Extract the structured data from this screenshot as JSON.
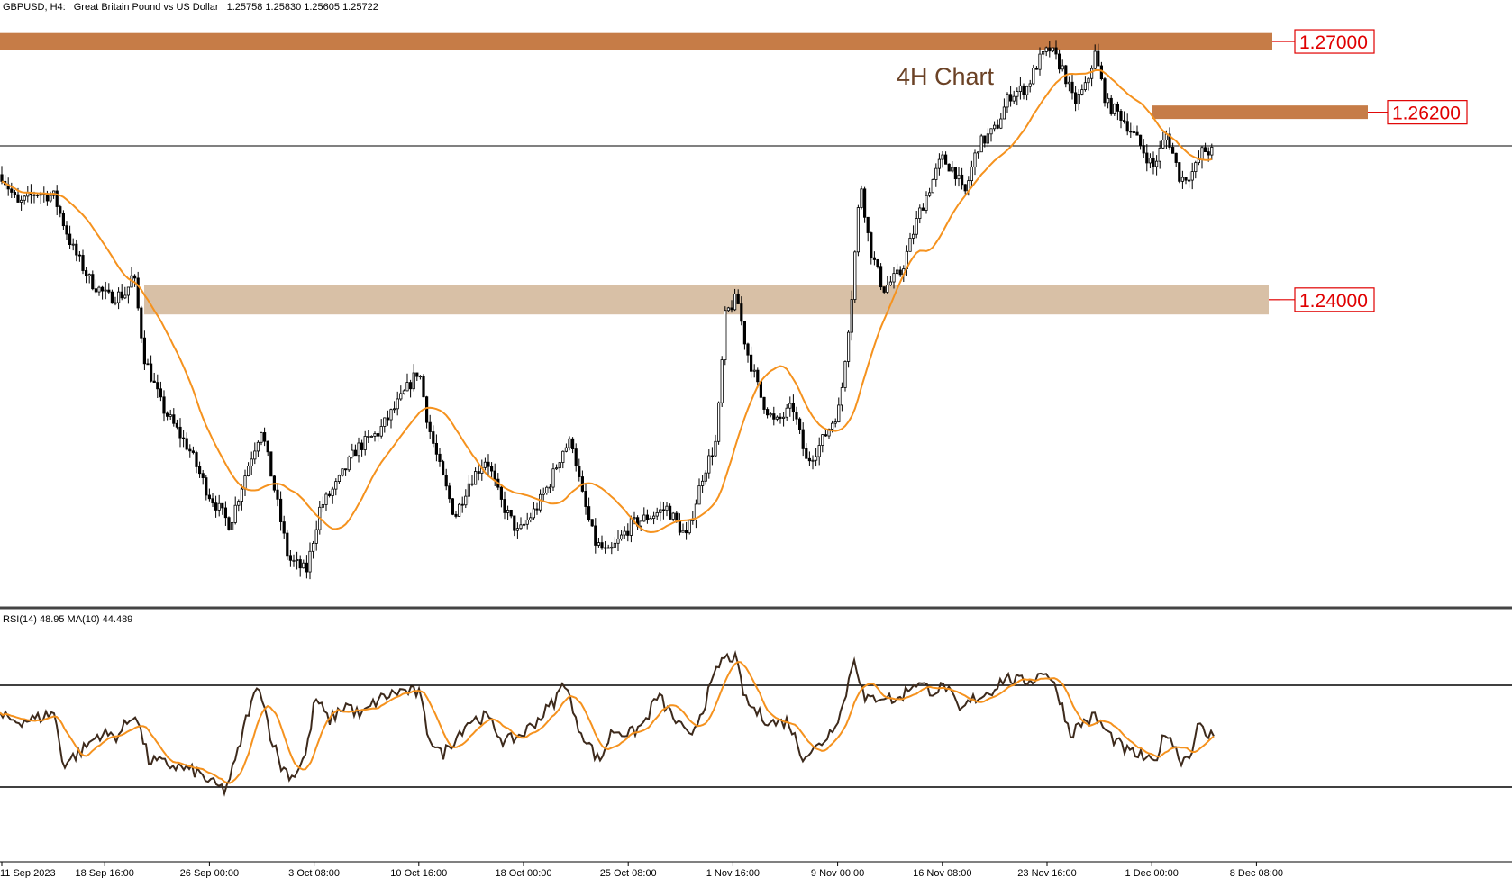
{
  "header": {
    "symbol": "GBPUSD, H4:",
    "description": "Great Britain Pound vs US Dollar",
    "ohlc": "1.25758 1.25830 1.25605 1.25722"
  },
  "indicator_label": "RSI(14) 48.95 MA(10) 44.489",
  "annotation": "4H Chart",
  "colors": {
    "candle": "#000000",
    "ma_line": "#f5921e",
    "rsi_line": "#3d2a1c",
    "rsi_ma_line": "#f5921e",
    "zone_dark": "#c67c47",
    "zone_light": "#d8c0a6",
    "level_label": "#e00000",
    "annotation": "#6b4226"
  },
  "chart_data": [
    {
      "type": "candlestick",
      "title": "",
      "x_ticks": [
        "11 Sep 2023",
        "18 Sep 16:00",
        "26 Sep 00:00",
        "3 Oct 08:00",
        "10 Oct 16:00",
        "18 Oct 00:00",
        "25 Oct 08:00",
        "1 Nov 16:00",
        "9 Nov 00:00",
        "16 Nov 08:00",
        "23 Nov 16:00",
        "1 Dec 00:00",
        "8 Dec 08:00"
      ],
      "ylim": [
        1.2035,
        1.275
      ],
      "current_price": 1.25722,
      "price_path": [
        [
          0,
          1.255
        ],
        [
          20,
          1.251
        ],
        [
          40,
          1.2525
        ],
        [
          60,
          1.252
        ],
        [
          80,
          1.246
        ],
        [
          100,
          1.242
        ],
        [
          120,
          1.24
        ],
        [
          140,
          1.2405
        ],
        [
          148,
          1.243
        ],
        [
          160,
          1.233
        ],
        [
          180,
          1.227
        ],
        [
          210,
          1.222
        ],
        [
          230,
          1.217
        ],
        [
          255,
          1.213
        ],
        [
          275,
          1.22
        ],
        [
          290,
          1.2245
        ],
        [
          305,
          1.217
        ],
        [
          320,
          1.209
        ],
        [
          340,
          1.2075
        ],
        [
          355,
          1.215
        ],
        [
          375,
          1.218
        ],
        [
          395,
          1.222
        ],
        [
          420,
          1.224
        ],
        [
          445,
          1.228
        ],
        [
          465,
          1.2315
        ],
        [
          475,
          1.225
        ],
        [
          490,
          1.219
        ],
        [
          505,
          1.214
        ],
        [
          520,
          1.218
        ],
        [
          540,
          1.221
        ],
        [
          555,
          1.216
        ],
        [
          575,
          1.212
        ],
        [
          595,
          1.215
        ],
        [
          610,
          1.218
        ],
        [
          625,
          1.222
        ],
        [
          635,
          1.223
        ],
        [
          645,
          1.217
        ],
        [
          660,
          1.211
        ],
        [
          675,
          1.2095
        ],
        [
          700,
          1.213
        ],
        [
          720,
          1.214
        ],
        [
          740,
          1.215
        ],
        [
          762,
          1.2115
        ],
        [
          780,
          1.219
        ],
        [
          795,
          1.223
        ],
        [
          805,
          1.238
        ],
        [
          818,
          1.24
        ],
        [
          828,
          1.234
        ],
        [
          845,
          1.228
        ],
        [
          860,
          1.225
        ],
        [
          880,
          1.227
        ],
        [
          895,
          1.2205
        ],
        [
          910,
          1.2225
        ],
        [
          932,
          1.227
        ],
        [
          945,
          1.24
        ],
        [
          955,
          1.254
        ],
        [
          965,
          1.246
        ],
        [
          980,
          1.241
        ],
        [
          1000,
          1.243
        ],
        [
          1020,
          1.25
        ],
        [
          1045,
          1.2565
        ],
        [
          1060,
          1.255
        ],
        [
          1070,
          1.252
        ],
        [
          1085,
          1.258
        ],
        [
          1105,
          1.26
        ],
        [
          1120,
          1.264
        ],
        [
          1140,
          1.265
        ],
        [
          1152,
          1.268
        ],
        [
          1165,
          1.2695
        ],
        [
          1180,
          1.267
        ],
        [
          1192,
          1.263
        ],
        [
          1205,
          1.265
        ],
        [
          1215,
          1.269
        ],
        [
          1228,
          1.263
        ],
        [
          1245,
          1.2615
        ],
        [
          1260,
          1.259
        ],
        [
          1280,
          1.2555
        ],
        [
          1295,
          1.2595
        ],
        [
          1310,
          1.254
        ],
        [
          1325,
          1.255
        ],
        [
          1335,
          1.2575
        ],
        [
          1348,
          1.2572
        ]
      ],
      "levels": [
        {
          "label": "1.27000",
          "y_top": 1.2714,
          "y_bottom": 1.2694,
          "style": "dark"
        },
        {
          "label": "1.26200",
          "y_top": 1.2628,
          "y_bottom": 1.2612,
          "style": "dark"
        },
        {
          "label": "1.24000",
          "y_top": 1.2415,
          "y_bottom": 1.238,
          "style": "light"
        }
      ]
    },
    {
      "type": "line",
      "title": "",
      "ylim": [
        0,
        100
      ],
      "levels": [
        70,
        30
      ],
      "rsi_path": [
        [
          0,
          58
        ],
        [
          20,
          56
        ],
        [
          40,
          57
        ],
        [
          60,
          60
        ],
        [
          70,
          36
        ],
        [
          90,
          42
        ],
        [
          110,
          50
        ],
        [
          130,
          49
        ],
        [
          150,
          60
        ],
        [
          165,
          38
        ],
        [
          185,
          36
        ],
        [
          205,
          34
        ],
        [
          220,
          32
        ],
        [
          235,
          27
        ],
        [
          250,
          24
        ],
        [
          262,
          38
        ],
        [
          275,
          60
        ],
        [
          288,
          73
        ],
        [
          300,
          50
        ],
        [
          312,
          35
        ],
        [
          325,
          30
        ],
        [
          340,
          41
        ],
        [
          350,
          67
        ],
        [
          365,
          56
        ],
        [
          385,
          64
        ],
        [
          400,
          58
        ],
        [
          420,
          66
        ],
        [
          445,
          70
        ],
        [
          465,
          69
        ],
        [
          475,
          50
        ],
        [
          490,
          40
        ],
        [
          505,
          48
        ],
        [
          520,
          56
        ],
        [
          540,
          58
        ],
        [
          560,
          46
        ],
        [
          580,
          50
        ],
        [
          600,
          58
        ],
        [
          615,
          65
        ],
        [
          628,
          75
        ],
        [
          638,
          56
        ],
        [
          650,
          48
        ],
        [
          665,
          37
        ],
        [
          680,
          52
        ],
        [
          700,
          50
        ],
        [
          715,
          55
        ],
        [
          730,
          68
        ],
        [
          750,
          56
        ],
        [
          765,
          48
        ],
        [
          780,
          62
        ],
        [
          800,
          84
        ],
        [
          815,
          86
        ],
        [
          828,
          65
        ],
        [
          845,
          58
        ],
        [
          860,
          55
        ],
        [
          875,
          56
        ],
        [
          890,
          40
        ],
        [
          905,
          43
        ],
        [
          920,
          50
        ],
        [
          935,
          62
        ],
        [
          948,
          86
        ],
        [
          960,
          65
        ],
        [
          980,
          68
        ],
        [
          995,
          65
        ],
        [
          1015,
          74
        ],
        [
          1035,
          70
        ],
        [
          1050,
          72
        ],
        [
          1065,
          60
        ],
        [
          1080,
          66
        ],
        [
          1100,
          70
        ],
        [
          1115,
          76
        ],
        [
          1135,
          74
        ],
        [
          1150,
          76
        ],
        [
          1160,
          80
        ],
        [
          1175,
          68
        ],
        [
          1188,
          50
        ],
        [
          1200,
          55
        ],
        [
          1215,
          58
        ],
        [
          1230,
          50
        ],
        [
          1250,
          42
        ],
        [
          1265,
          40
        ],
        [
          1280,
          36
        ],
        [
          1295,
          52
        ],
        [
          1310,
          38
        ],
        [
          1320,
          40
        ],
        [
          1330,
          54
        ],
        [
          1340,
          49
        ],
        [
          1348,
          50
        ]
      ]
    }
  ]
}
